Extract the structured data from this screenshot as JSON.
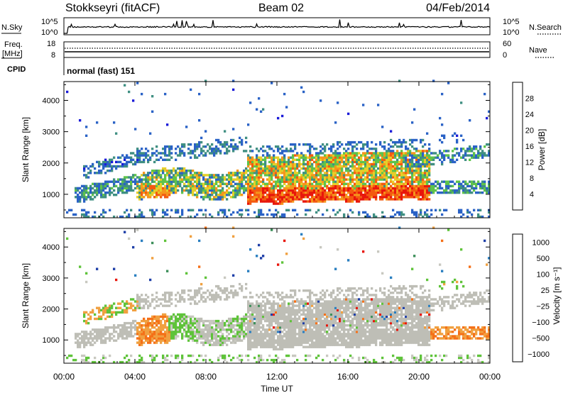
{
  "header": {
    "radar": "Stokkseyri (fitACF)",
    "beam": "Beam 02",
    "date": "04/Feb/2014"
  },
  "noise_panel": {
    "left_label": "N.Sky",
    "left_ticks": [
      "10^5",
      "10^0"
    ],
    "right_ticks": [
      "10^5",
      "10^0"
    ],
    "right_label": "N.Search"
  },
  "freq_panel": {
    "left_label_1": "Freq.",
    "left_label_2": "[MHz]",
    "left_ticks": [
      "18",
      "8"
    ],
    "right_ticks": [
      "60",
      "0"
    ],
    "right_label": "Nave"
  },
  "cpid_panel": {
    "label": "CPID",
    "text": "normal (fast) 151"
  },
  "chart_data": [
    {
      "type": "heatmap",
      "quantity": "power",
      "ylabel": "Slant Range [km]",
      "yticks": [
        "1000",
        "2000",
        "3000",
        "4000"
      ],
      "ylim": [
        250,
        4600
      ],
      "colorbar_label": "Power [dB]",
      "colorbar_ticks": [
        "4",
        "8",
        "12",
        "16",
        "20",
        "24",
        "28"
      ],
      "colorbar_range": [
        0,
        32
      ],
      "colors": [
        "#1a1ad8",
        "#2a62c6",
        "#3f8f82",
        "#5ec34a",
        "#e6cf29",
        "#f5961c",
        "#f35a10",
        "#e8160c"
      ]
    },
    {
      "type": "heatmap",
      "quantity": "velocity",
      "ylabel": "Slant Range [km]",
      "yticks": [
        "1000",
        "2000",
        "3000",
        "4000"
      ],
      "ylim": [
        250,
        4600
      ],
      "xlabel": "Time UT",
      "xticks": [
        "00:00",
        "04:00",
        "08:00",
        "12:00",
        "16:00",
        "20:00",
        "00:00"
      ],
      "xlim": [
        0,
        24
      ],
      "colorbar_label": "Velocity [m s⁻¹]",
      "colorbar_ticks": [
        "1000",
        "500",
        "100",
        "25",
        "−25",
        "−100",
        "−500",
        "−1000"
      ],
      "colors": [
        "#1f3fa8",
        "#2a7fc0",
        "#3d8f5a",
        "#5fc33a",
        "#c8c8c0",
        "#f0a040",
        "#f57018",
        "#e8160c"
      ],
      "ground_scatter_color": "#bebeb6"
    }
  ]
}
